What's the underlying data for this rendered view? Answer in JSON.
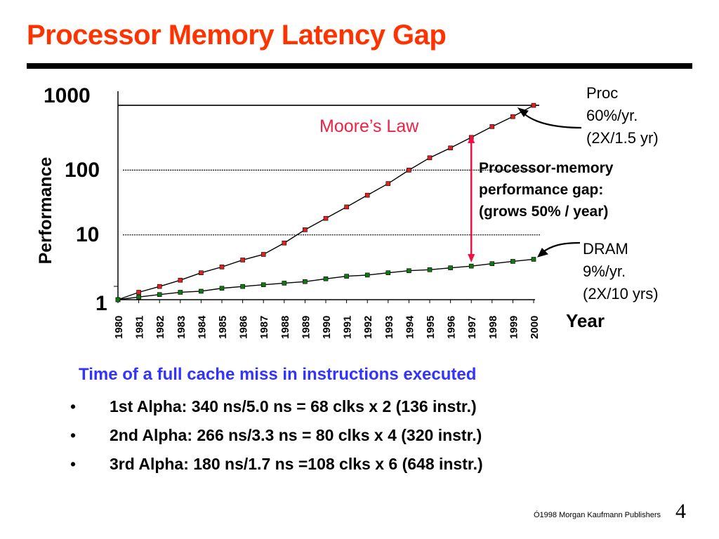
{
  "slide": {
    "title": "Processor Memory Latency Gap",
    "caption": "Time of a full cache miss in instructions executed",
    "bullets": [
      "1st Alpha: 340 ns/5.0 ns = 68 clks x 2 (136 instr.)",
      "2nd Alpha: 266 ns/3.3 ns = 80 clks x 4 (320 instr.)",
      "3rd Alpha: 180 ns/1.7 ns =108 clks x 6 (648 instr.)"
    ],
    "bullet_glyph": "•",
    "copyright": "Ó1998 Morgan Kaufmann Publishers",
    "page_number": "4"
  },
  "chart_data": {
    "type": "line",
    "y_scale": "log",
    "ylabel": "Performance",
    "xlabel": "Year",
    "ylim": [
      1,
      1000
    ],
    "yticks": [
      "1",
      "10",
      "100",
      "1000"
    ],
    "grid": "horizontal at 10, 100, 1000",
    "x": [
      "1980",
      "1981",
      "1982",
      "1983",
      "1984",
      "1985",
      "1986",
      "1987",
      "1988",
      "1989",
      "1990",
      "1991",
      "1992",
      "1993",
      "1994",
      "1995",
      "1996",
      "1997",
      "1998",
      "1999",
      "2000"
    ],
    "series": [
      {
        "name": "Proc",
        "color": "#dd2222",
        "values": [
          1,
          1.3,
          1.6,
          2.0,
          2.6,
          3.2,
          4.1,
          5.0,
          7.5,
          12,
          18,
          27,
          41,
          62,
          100,
          155,
          220,
          320,
          470,
          670,
          1000
        ]
      },
      {
        "name": "DRAM",
        "color": "#117711",
        "values": [
          1,
          1.1,
          1.2,
          1.3,
          1.35,
          1.5,
          1.6,
          1.7,
          1.8,
          1.9,
          2.1,
          2.3,
          2.4,
          2.6,
          2.8,
          2.9,
          3.1,
          3.3,
          3.6,
          3.9,
          4.2
        ]
      }
    ],
    "annotations": {
      "moores_law": "Moore’s Law",
      "proc_label": [
        "Proc",
        "60%/yr.",
        "(2X/1.5 yr)"
      ],
      "dram_label": [
        "DRAM",
        "9%/yr.",
        "(2X/10 yrs)"
      ],
      "gap_label": [
        "Processor-memory",
        "performance gap:",
        "(grows 50% / year)"
      ]
    }
  }
}
